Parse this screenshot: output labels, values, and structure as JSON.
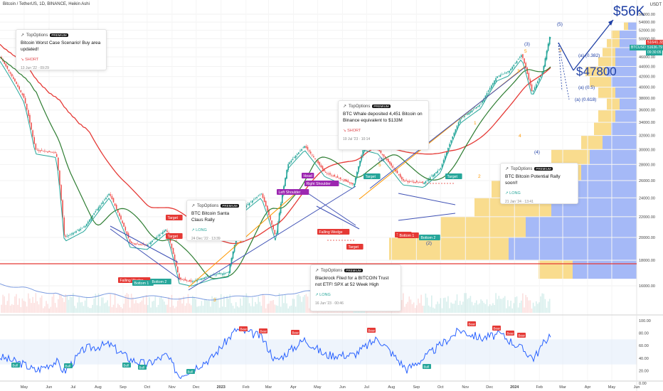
{
  "header": {
    "symbol_line": "Bitcoin / TetherUS, 1D, BINANCE, Heikin Ashi",
    "currency": "USDT"
  },
  "chart_data": {
    "type": "line",
    "title": "Bitcoin / TetherUS, 1D, BINANCE, Heikin Ashi",
    "price_axis_ticks": [
      "56000.00",
      "54000.00",
      "52000.00",
      "50000.00",
      "48000.00",
      "46000.00",
      "44000.00",
      "42000.00",
      "40000.00",
      "38000.00",
      "36000.00",
      "34000.00",
      "32000.00",
      "30000.00",
      "28000.00",
      "26000.00",
      "24000.00",
      "22000.00",
      "20000.00",
      "18000.00",
      "16000.00"
    ],
    "rsi_axis_ticks": [
      "100.00",
      "80.00",
      "60.00",
      "40.00",
      "20.00",
      "0.00"
    ],
    "time_axis_ticks": [
      "May",
      "Jun",
      "Jul",
      "Aug",
      "Sep",
      "Oct",
      "Nov",
      "Dec",
      "2023",
      "Feb",
      "Mar",
      "Apr",
      "May",
      "Jun",
      "Jul",
      "Aug",
      "Sep",
      "Oct",
      "Nov",
      "Dec",
      "2024",
      "Feb",
      "Mar",
      "Apr",
      "May",
      "Jun"
    ],
    "price_badges": {
      "current_price": "51641.33",
      "pair_label": "BTCUSDT",
      "pair_price": "51636.79",
      "pair_time": "09:30:05"
    },
    "price_series": {
      "name": "BTCUSDT",
      "dates": [
        "2022-04-01",
        "2022-05-01",
        "2022-05-15",
        "2022-06-10",
        "2022-06-20",
        "2022-07-15",
        "2022-08-15",
        "2022-09-10",
        "2022-10-01",
        "2022-10-25",
        "2022-11-10",
        "2022-11-25",
        "2022-12-20",
        "2023-01-10",
        "2023-01-30",
        "2023-02-20",
        "2023-03-10",
        "2023-03-25",
        "2023-04-15",
        "2023-05-10",
        "2023-06-15",
        "2023-06-28",
        "2023-07-15",
        "2023-08-15",
        "2023-09-10",
        "2023-10-01",
        "2023-10-25",
        "2023-11-20",
        "2023-12-10",
        "2023-12-25",
        "2024-01-10",
        "2024-01-23",
        "2024-02-05",
        "2024-02-15"
      ],
      "values": [
        46000,
        38000,
        30000,
        29500,
        20000,
        21000,
        24500,
        19500,
        19300,
        20800,
        16500,
        16300,
        16800,
        17000,
        23000,
        24500,
        20000,
        28000,
        30500,
        27000,
        25500,
        30500,
        30000,
        26000,
        25700,
        27500,
        34500,
        37000,
        42000,
        43000,
        46500,
        39000,
        43000,
        51500
      ]
    },
    "rsi_series": {
      "dates": [
        "2022-04-01",
        "2022-05-01",
        "2022-05-15",
        "2022-06-10",
        "2022-06-20",
        "2022-07-15",
        "2022-08-15",
        "2022-09-10",
        "2022-10-01",
        "2022-10-25",
        "2022-11-10",
        "2022-12-20",
        "2023-01-20",
        "2023-02-20",
        "2023-03-10",
        "2023-04-15",
        "2023-05-10",
        "2023-06-15",
        "2023-07-15",
        "2023-08-20",
        "2023-09-10",
        "2023-10-25",
        "2023-11-20",
        "2023-12-15",
        "2024-01-10",
        "2024-01-25",
        "2024-02-15"
      ],
      "values": [
        42,
        30,
        20,
        35,
        18,
        55,
        62,
        38,
        30,
        45,
        12,
        40,
        86,
        75,
        35,
        70,
        45,
        45,
        72,
        22,
        40,
        85,
        72,
        78,
        55,
        40,
        80
      ]
    },
    "waves": [
      "(1)",
      "(2)",
      "(3)",
      "(4)",
      "(5)",
      "1",
      "2",
      "3",
      "4",
      "5",
      "5",
      "3",
      "5",
      "(a) (0.382)",
      "(a) (0.5)",
      "(a) (0.618)"
    ],
    "projections": [
      {
        "label": "$56K",
        "value": 56000
      },
      {
        "label": "$47800",
        "value": 47800
      }
    ],
    "pattern_tags": [
      "Target",
      "Target",
      "Falling Wedge",
      "Bottom 1",
      "Bottom 2",
      "Head",
      "Left Shoulder",
      "Right Shoulder",
      "Falling Wedge",
      "Target",
      "Target",
      "Target",
      "Bottom 1",
      "Bottom 2",
      "Target"
    ],
    "rsi_tags": [
      "Bull",
      "Bull",
      "Bull",
      "Bull",
      "Bull",
      "Bull",
      "Bear",
      "Bear",
      "Bear",
      "Bear",
      "Bear",
      "Bear",
      "Bear",
      "Bear"
    ],
    "colors": {
      "up": "#26a69a",
      "down": "#ef5350",
      "ma_red": "#e53935",
      "ma_green": "#43a047",
      "ma_teal": "#26a69a",
      "rsi_line": "#2962ff",
      "projection": "#1e3fa5",
      "volume_profile_up": "#5b7ff0",
      "volume_profile_down": "#f5c542"
    }
  },
  "ideas": [
    {
      "brand": "TopOptions",
      "badge": "PREMIUM",
      "title": "Bitcoin Worst Case Scenario! Buy area updated!",
      "direction": "SHORT",
      "date": "13 Jun '22 · 09:29"
    },
    {
      "brand": "TopOptions",
      "badge": "PREMIUM",
      "title": "BTC Bitcoin Santa Claus Rally",
      "direction": "LONG",
      "date": "24 Dec '22 · 13:39"
    },
    {
      "brand": "TopOptions",
      "badge": "PREMIUM",
      "title": "BTC Whale deposited 4,451 Bitcoin on Binance equivalent to $133M",
      "direction": "SHORT",
      "date": "19 Jul '23 · 10:14"
    },
    {
      "brand": "TopOptions",
      "badge": "PREMIUM",
      "title": "BTC Bitcoin Potential Rally soon!!",
      "direction": "LONG",
      "date": "21 Jan '24 · 13:41"
    },
    {
      "brand": "TopOptions",
      "badge": "PREMIUM",
      "title": "Blackrock Filed for a BITCOIN Trust not ETF! SPX at 52 Week High",
      "direction": "LONG",
      "date": "16 Jun '23 · 00:46"
    }
  ]
}
